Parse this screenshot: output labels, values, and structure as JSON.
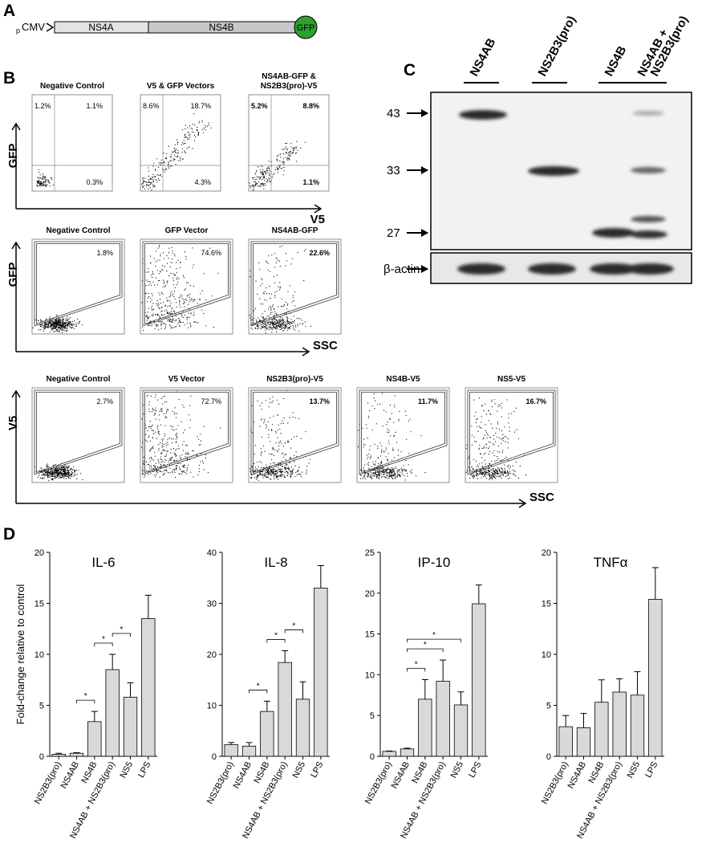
{
  "panel_a": {
    "label": "A",
    "promoter_prefix": "p",
    "promoter": "CMV",
    "segments": [
      "NS4A",
      "NS4B"
    ],
    "tag": "GFP"
  },
  "panel_b": {
    "label": "B",
    "rows": [
      {
        "y_axis": "GFP",
        "x_axis": "V5",
        "gate": "quadrant",
        "plots": [
          {
            "title": [
              "Negative Control"
            ],
            "upper_left": "1.2%",
            "upper_right": "1.1%",
            "lower_right": "0.3%"
          },
          {
            "title": [
              "V5 & GFP Vectors"
            ],
            "upper_left": "8.6%",
            "upper_right": "18.7%",
            "lower_right": "4.3%"
          },
          {
            "title": [
              "NS4AB-GFP &",
              "NS2B3(pro)-V5"
            ],
            "upper_left": "5.2%",
            "upper_right": "8.8%",
            "lower_right": "1.1%",
            "emphasis": true
          }
        ]
      },
      {
        "y_axis": "GFP",
        "x_axis": "SSC",
        "gate": "polygon",
        "plots": [
          {
            "title": [
              "Negative Control"
            ],
            "gated": "1.8%"
          },
          {
            "title": [
              "GFP Vector"
            ],
            "gated": "74.6%"
          },
          {
            "title": [
              "NS4AB-GFP"
            ],
            "gated": "22.6%",
            "emphasis": true
          }
        ]
      },
      {
        "y_axis": "V5",
        "x_axis": "SSC",
        "gate": "polygon",
        "plots": [
          {
            "title": [
              "Negative Control"
            ],
            "gated": "2.7%"
          },
          {
            "title": [
              "V5 Vector"
            ],
            "gated": "72.7%"
          },
          {
            "title": [
              "NS2B3(pro)-V5"
            ],
            "gated": "13.7%",
            "emphasis": true
          },
          {
            "title": [
              "NS4B-V5"
            ],
            "gated": "11.7%",
            "emphasis": true
          },
          {
            "title": [
              "NS5-V5"
            ],
            "gated": "16.7%",
            "emphasis": true
          }
        ]
      }
    ]
  },
  "panel_c": {
    "label": "C",
    "lanes": [
      [
        "NS4AB"
      ],
      [
        "NS2B3(pro)"
      ],
      [
        "NS4B"
      ],
      [
        "NS4AB +",
        "NS2B3(pro)"
      ]
    ],
    "markers": [
      43,
      33,
      27
    ],
    "loading_control": "β-actin"
  },
  "panel_d_label": "D",
  "chart_data": [
    {
      "type": "bar",
      "title": "IL-6",
      "ylabel": "Fold-change relative to control",
      "categories": [
        "NS2B3(pro)",
        "NS4AB",
        "NS4B",
        "NS4AB + NS2B3(pro)",
        "NS5",
        "LPS"
      ],
      "values": [
        0.2,
        0.3,
        3.4,
        8.5,
        5.8,
        13.5
      ],
      "errors": [
        0.1,
        0.05,
        1.0,
        1.5,
        1.4,
        2.3
      ],
      "color": "#d9d9d9",
      "ylim": [
        0,
        20
      ],
      "yticks": [
        0,
        5,
        10,
        15,
        20
      ],
      "annotations": [
        {
          "from": 1,
          "to": 2,
          "label": "*"
        },
        {
          "from": 2,
          "to": 3,
          "label": "*"
        },
        {
          "from": 3,
          "to": 4,
          "label": "*"
        }
      ]
    },
    {
      "type": "bar",
      "title": "IL-8",
      "categories": [
        "NS2B3(pro)",
        "NS4AB",
        "NS4B",
        "NS4AB + NS2B3(pro)",
        "NS5",
        "LPS"
      ],
      "values": [
        2.3,
        2.0,
        8.8,
        18.4,
        11.2,
        33
      ],
      "errors": [
        0.4,
        0.7,
        2.0,
        2.3,
        3.4,
        4.4
      ],
      "color": "#d9d9d9",
      "ylim": [
        0,
        40
      ],
      "yticks": [
        0,
        10,
        20,
        30,
        40
      ],
      "annotations": [
        {
          "from": 1,
          "to": 2,
          "label": "*"
        },
        {
          "from": 2,
          "to": 3,
          "label": "*"
        },
        {
          "from": 3,
          "to": 4,
          "label": "*"
        }
      ]
    },
    {
      "type": "bar",
      "title": "IP-10",
      "categories": [
        "NS2B3(pro)",
        "NS4AB",
        "NS4B",
        "NS4AB + NS2B3(pro)",
        "NS5",
        "LPS"
      ],
      "values": [
        0.6,
        0.9,
        7.0,
        9.2,
        6.3,
        18.7
      ],
      "errors": [
        0.05,
        0.1,
        2.4,
        2.6,
        1.6,
        2.3
      ],
      "color": "#d9d9d9",
      "ylim": [
        0,
        25
      ],
      "yticks": [
        0,
        5,
        10,
        15,
        20,
        25
      ],
      "annotations": [
        {
          "from": 1,
          "to": 2,
          "label": "*"
        },
        {
          "from": 1,
          "to": 3,
          "label": "*"
        },
        {
          "from": 1,
          "to": 4,
          "label": "*"
        }
      ]
    },
    {
      "type": "bar",
      "title": "TNFα",
      "categories": [
        "NS2B3(pro)",
        "NS4AB",
        "NS4B",
        "NS4AB + NS2B3(pro)",
        "NS5",
        "LPS"
      ],
      "values": [
        2.9,
        2.8,
        5.3,
        6.3,
        6.0,
        15.4
      ],
      "errors": [
        1.1,
        1.4,
        2.2,
        1.3,
        2.3,
        3.1
      ],
      "color": "#d9d9d9",
      "ylim": [
        0,
        20
      ],
      "yticks": [
        0,
        5,
        10,
        15,
        20
      ]
    }
  ]
}
